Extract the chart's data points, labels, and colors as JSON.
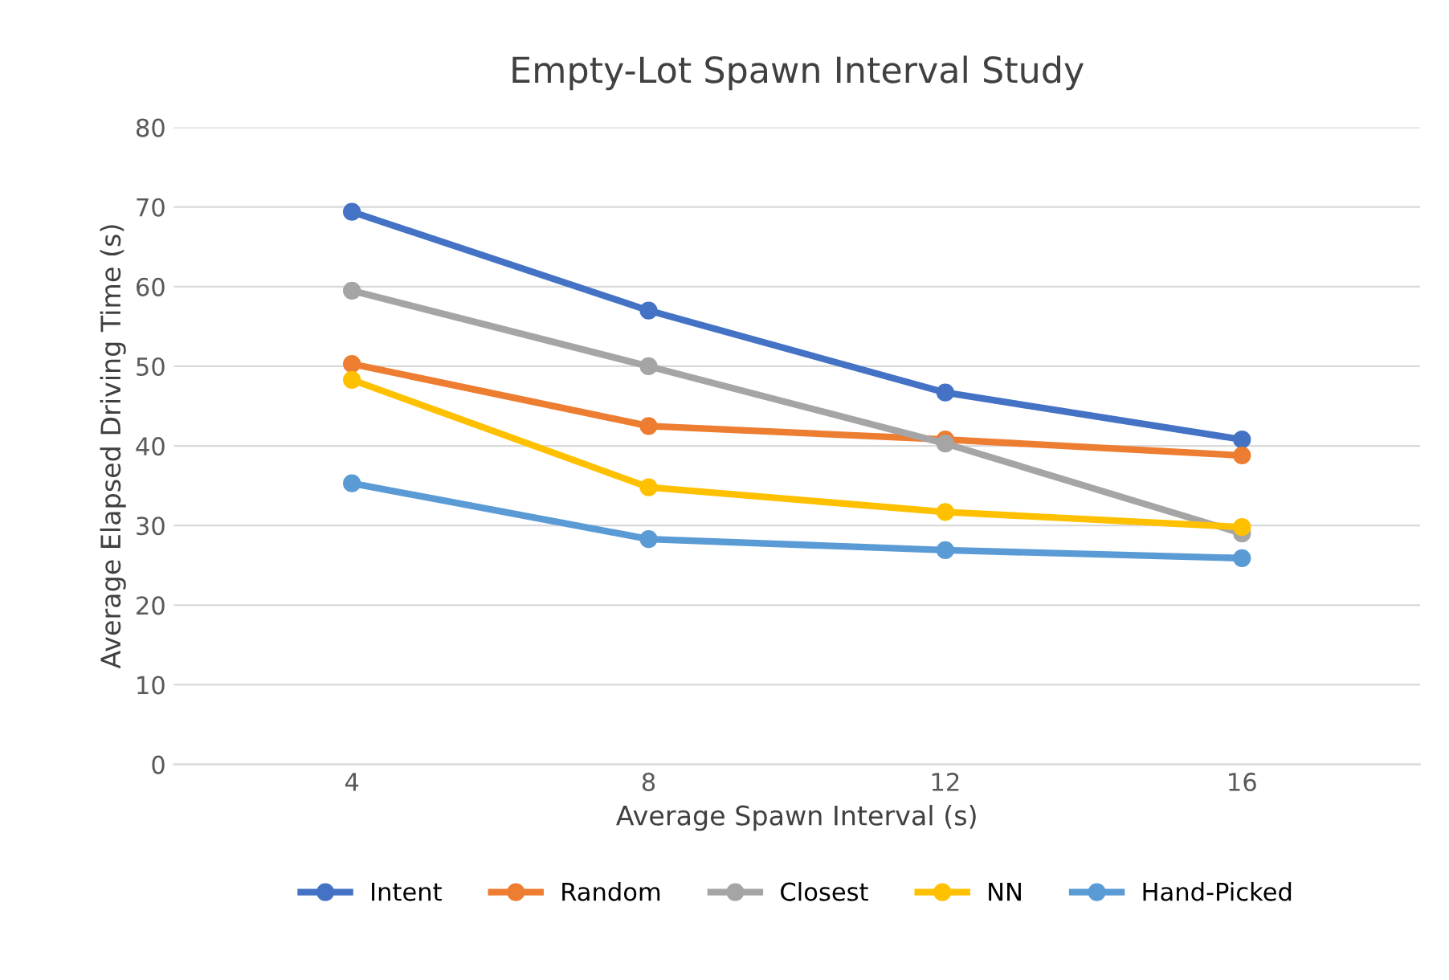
{
  "chart_data": {
    "type": "line",
    "title": "Empty-Lot Spawn Interval Study",
    "xlabel": "Average Spawn Interval (s)",
    "ylabel": "Average Elapsed Driving Time (s)",
    "categories": [
      "4",
      "8",
      "12",
      "16"
    ],
    "series": [
      {
        "name": "Intent",
        "color": "#4472c4",
        "values": [
          69.4,
          57.0,
          46.7,
          40.8
        ]
      },
      {
        "name": "Random",
        "color": "#ed7d31",
        "values": [
          50.3,
          42.5,
          40.8,
          38.8
        ]
      },
      {
        "name": "Closest",
        "color": "#a5a5a5",
        "values": [
          59.5,
          50.0,
          40.3,
          29.0
        ]
      },
      {
        "name": "NN",
        "color": "#ffc000",
        "values": [
          48.3,
          34.8,
          31.7,
          29.8
        ]
      },
      {
        "name": "Hand-Picked",
        "color": "#5b9bd5",
        "values": [
          35.3,
          28.3,
          26.9,
          25.9
        ]
      }
    ],
    "ylim": [
      0,
      80
    ],
    "yticks": [
      0,
      10,
      20,
      30,
      40,
      50,
      60,
      70,
      80
    ],
    "grid": "y",
    "legend": "bottom",
    "marker": "circle",
    "line_style": "solid"
  }
}
